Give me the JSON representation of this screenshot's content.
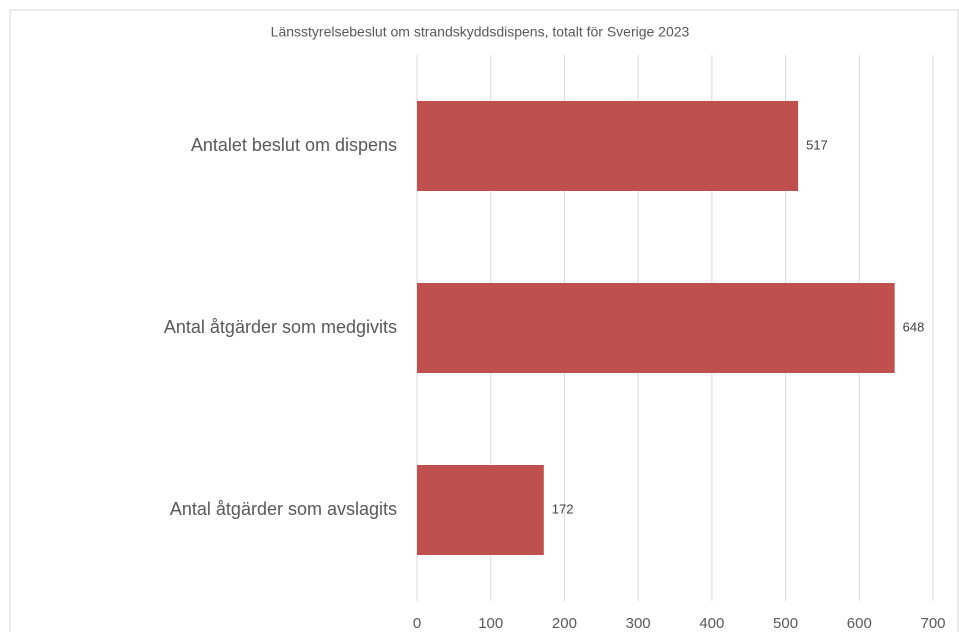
{
  "chart_data": {
    "type": "bar",
    "orientation": "horizontal",
    "title": "Länsstyrelsebeslut om strandskyddsdispens, totalt för Sverige 2023",
    "categories": [
      "Antalet beslut om dispens",
      "Antal åtgärder som medgivits",
      "Antal åtgärder som avslagits"
    ],
    "values": [
      517,
      648,
      172
    ],
    "color": "#c0504d",
    "xlim": [
      0,
      700
    ],
    "xticks": [
      0,
      100,
      200,
      300,
      400,
      500,
      600,
      700
    ],
    "grid": true
  }
}
